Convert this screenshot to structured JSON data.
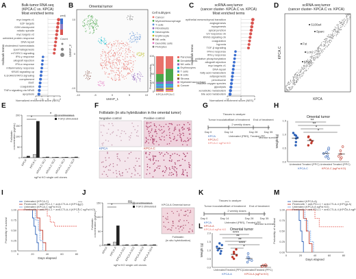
{
  "panels": {
    "A": {
      "letter": "A",
      "title": [
        "Bulk-tumor RNA seq",
        "(KPCA.C vs. KPCA)",
        "Most enriched terms"
      ],
      "ylabel": "Hallmark terms",
      "xlabel": "Normalized enrichment score (NES)",
      "legend_title": "padj",
      "size_title": "Count",
      "terms_up": [
        "myc targets v1",
        "E2F targets",
        "G2M checkpoint",
        "mitotic spindle",
        "myc targets v2",
        "unfolded protein response",
        "DNA repair",
        "cholesterol homeostasis",
        "spermatogenesis",
        "mTORC1 signaling"
      ],
      "terms_down": [
        "IFN-γ response",
        "allograft rejection",
        "IFN-α response",
        "inflammatory response",
        "KRAS signaling up",
        "IL6/JAK/STAT3 signaling",
        "complement",
        "EMT",
        "coagulation",
        "TNFα signaling via NFκB",
        "apoptosis"
      ],
      "ticks": [
        "−2",
        "−1",
        "0",
        "1",
        "2"
      ]
    },
    "B": {
      "letter": "B",
      "title": "Omental tumor",
      "xlabel": "UMAP_1",
      "ylabel": "UMAP_2",
      "legend_title": "Cell subtypes",
      "subtypes": [
        "Cancer",
        "Myeloid/macrophage",
        "T cells",
        "Fibroblasts",
        "Neutrophils",
        "Erythrocyte",
        "NK cells",
        "Dendritic cells",
        "Pericytes"
      ],
      "subtype_colors": [
        "#e8726b",
        "#4aa64a",
        "#5b8fd6",
        "#9467bd",
        "#17becf",
        "#bcbd22",
        "#8c564b",
        "#e377c2",
        "#7f7f7f"
      ],
      "bar_ylabel": "Percent composition",
      "bar_cats": [
        "KPCA",
        "KPCA.C"
      ],
      "bar_legend": [
        "Pancreas",
        "Dendritic cells",
        "NK cells",
        "Erythrocytes",
        "T cells",
        "B cells",
        "Stroma",
        "Myeloid/macrophage",
        "Cancer"
      ],
      "bar_ticks": [
        "0",
        "25",
        "50",
        "75",
        "100"
      ],
      "umap_ticks_x": [
        "-10",
        "-5",
        "0",
        "5",
        "10"
      ],
      "umap_ticks_y": [
        "-10",
        "0",
        "10"
      ]
    },
    "C": {
      "letter": "C",
      "title": [
        "scRNA-seq tumor",
        "(cancer cluster- KPCA.C vs. KPCA)",
        "Most enriched terms"
      ],
      "ylabel": "Hallmark terms",
      "xlabel": "Normalized enrichment score (NES)",
      "terms_up": [
        "epithelial mesenchymal transition",
        "angiogenesis",
        "myogenesis",
        "apical junction",
        "UV response dn",
        "KRAS signaling dn",
        "coagulation",
        "hypoxia",
        "TGF-β signaling"
      ],
      "terms_down": [
        "IFN-α response",
        "IFN-γ response",
        "oxidative phosphorylation",
        "allograft rejection",
        "myc targets v1",
        "DNA repair",
        "fatty acid metabolism",
        "adipogenesis",
        "peroxisome",
        "reactive oxygen species",
        "glycolysis",
        "xenobiotic metabolism",
        "bile acid metabolism"
      ],
      "ticks": [
        "−2",
        "0",
        "2"
      ]
    },
    "D": {
      "letter": "D",
      "title": [
        "scRNA-seq tumor",
        "(cancer cluster- KPCA.C vs. KPCA)"
      ],
      "xlabel": "KPCA",
      "ylabel": "KPCA.C",
      "labels": [
        "S100a4",
        "Sparc",
        "Fst",
        "Lcn2",
        "Krt20"
      ]
    },
    "E": {
      "letter": "E",
      "ylabel": [
        "Follistatin",
        "concentration (pg/mL)"
      ],
      "xlabel": "sgFst KO single cell clones",
      "legend": [
        "Unstimulated",
        "TGFβ stimulated"
      ],
      "categories": [
        "KPCA",
        "KPCA.C",
        "KPCA.C SC1",
        "KPCA.C SC2",
        "KPCA.C SC3",
        "KPCA.C SC4"
      ],
      "unstim": [
        3,
        15,
        2,
        2,
        2,
        2
      ],
      "stim": [
        8,
        172,
        4,
        3,
        3,
        4
      ],
      "ylim": [
        0,
        200
      ],
      "yticks": [
        0,
        50,
        100,
        150,
        200
      ],
      "sig": [
        "*",
        "*"
      ]
    },
    "F": {
      "letter": "F",
      "title": "Follistatin (in situ hybridization in the omental tumor)",
      "labels": [
        "Negative control",
        "Positive control",
        "KPCA",
        "KPCA.C"
      ]
    },
    "G": {
      "letter": "G",
      "labels": [
        "Tumor inoculation",
        "Start of treatment",
        "Tissues to analyze: Omental tumor weight, Malignant ascites",
        "End of treatment",
        "Day 0",
        "Day 14",
        "Day 28",
        "2 weekly doses",
        "Day 35"
      ],
      "groups": [
        "KPCA",
        "KPCA.C",
        "KPCA.C sgFst KO"
      ],
      "doses": "Untreated (PBS), Treated (PPC): PD-1 + anti-CTLA-4 + anti-PD-L1",
      "monitor": "Monitor survival"
    },
    "H": {
      "letter": "H",
      "title": "Omental tumor",
      "ylabel": "Weight (g)",
      "ylim": [
        0,
        1.5
      ],
      "yticks": [
        "0.0",
        "0.5",
        "1.0",
        "1.5"
      ],
      "groups": [
        "Untreated",
        "Treated (PPC)",
        "Untreated",
        "Treated (PPC)"
      ],
      "group_colors": [
        "#2e62b8",
        "#c0392b",
        "#2e62b8",
        "#c0392b"
      ],
      "sub": [
        "KPCA.C",
        "KPCA.C (sgFst KO)"
      ],
      "sig": [
        "**",
        "**",
        "*",
        "*"
      ],
      "points": [
        [
          0.95,
          0.85,
          1.05,
          0.72,
          0.88,
          0.6,
          0.98
        ],
        [
          0.9,
          0.75,
          0.8,
          0.68,
          0.92,
          0.6
        ],
        [
          0.45,
          0.3,
          0.22,
          0.18,
          0.5,
          0.12,
          0.35
        ],
        [
          0.4,
          0.2,
          0.55,
          0.15,
          0.28,
          0.1
        ]
      ]
    },
    "I": {
      "letter": "I",
      "ylabel": "Probability of survival",
      "xlabel": "Days elapsed",
      "xticks": [
        0,
        20,
        40,
        60,
        80
      ],
      "yticks": [
        "0.00",
        "0.25",
        "0.50",
        "0.75",
        "1.00"
      ],
      "legend": [
        "Untreated (KPCA.C)",
        "Pembrolib + anti-PD-L1 + anti-CTLA-4 (KPCA.C)",
        "Untreated (KPCA.C sgFst KO)",
        "Pembrolib + anti-PD-L1 + anti-CTLA-4 (KPCA.C sgFst KO)"
      ],
      "colors": [
        "#2e62b8",
        "#c0392b",
        "#7aa3e0",
        "#e8726b"
      ],
      "sig": [
        "****",
        "***",
        "*",
        "*"
      ],
      "curves": [
        {
          "x": [
            0,
            18,
            20,
            22,
            24,
            26,
            28
          ],
          "y": [
            1,
            1,
            0.8,
            0.6,
            0.4,
            0.2,
            0
          ]
        },
        {
          "x": [
            0,
            24,
            26,
            30,
            34,
            38
          ],
          "y": [
            1,
            1,
            0.8,
            0.5,
            0.2,
            0
          ]
        },
        {
          "x": [
            0,
            20,
            24,
            28,
            30,
            34
          ],
          "y": [
            1,
            1,
            0.75,
            0.5,
            0.25,
            0
          ]
        },
        {
          "x": [
            0,
            34,
            40,
            44,
            50,
            80
          ],
          "y": [
            1,
            1,
            0.85,
            0.7,
            0.6,
            0.6
          ]
        }
      ]
    },
    "J": {
      "letter": "J",
      "ylabel": [
        "Follistatin",
        "concentration (pg/mL)"
      ],
      "xlabel": "sgFst KO single cell clones",
      "legend": [
        "Unstimulated",
        "TGF3 stimulated"
      ],
      "categories": [
        "KPCA",
        "KPCA.A",
        "KPCA.A SC1",
        "KPCA.A SC2",
        "KPCA.A SC3",
        "KPCA.A SC4"
      ],
      "unstim": [
        3,
        12,
        2,
        2,
        2,
        2
      ],
      "stim": [
        6,
        70,
        3,
        3,
        3,
        3
      ],
      "ylim": [
        0,
        150
      ],
      "yticks": [
        0,
        50,
        100,
        150
      ],
      "sig": [
        "*",
        "ns"
      ],
      "inset_title": "KPCA.A Omental tumor",
      "inset_caption": [
        "Follistatin",
        "(in situ hybridization)"
      ]
    },
    "K": {
      "letter": "K",
      "labels": [
        "Tumor inoculation",
        "Start of treatment",
        "Tissues to analyze: Omental tumor weight, Malignant ascites",
        "End of treatment",
        "Day 0",
        "Day 14",
        "Day 28",
        "2 weekly doses",
        "Day 35"
      ],
      "groups": [
        "KPCA",
        "KPCA.A",
        "KPCA.A sgFst KO"
      ],
      "doses": "Untreated (PBS), Treated (PPC): PD-1 + anti-CTLA-4 + anti-PD-L1",
      "monitor": "Monitor survival"
    },
    "L": {
      "letter": "L",
      "title": "Omental tumor",
      "ylabel": "Weight (g)",
      "ylim": [
        0,
        2.0
      ],
      "yticks": [
        "0.0",
        "0.5",
        "1.0",
        "1.5",
        "2.0"
      ],
      "groups": [
        "Untreated",
        "Treated (PPC)",
        "Untreated",
        "Treated (PPC)"
      ],
      "group_colors": [
        "#2e62b8",
        "#c0392b",
        "#2e62b8",
        "#c0392b"
      ],
      "sub": [
        "KPCA.A",
        "KPCA.A (sgFst KO)"
      ],
      "sig": [
        "****",
        "**",
        "**",
        "****",
        "*"
      ],
      "points": [
        [
          1.3,
          1.1,
          0.95,
          1.2,
          0.8,
          1.4,
          1.0
        ],
        [
          0.9,
          0.7,
          1.05,
          0.6,
          0.8,
          0.5
        ],
        [
          0.6,
          0.45,
          0.8,
          0.3,
          0.55,
          0.4
        ],
        [
          0.12,
          0.08,
          0.15,
          0.05,
          0.1,
          0.06
        ]
      ]
    },
    "M": {
      "letter": "M",
      "ylabel": "Probability of survival",
      "xlabel": "Days elapsed",
      "xticks": [
        0,
        20,
        40,
        60,
        80
      ],
      "yticks": [
        "0.00",
        "0.25",
        "0.50",
        "0.75",
        "1.00"
      ],
      "legend": [
        "Untreated (KPCA.A)",
        "Pembrolib + anti-PD-L1 + anti-CTLA-4 (KPCA.A)",
        "Untreated (KPCA.A sgFst KO)",
        "Pembrolib + anti-PD-L1 + anti-CTLA-4 (KPCA.A sgFst KO)"
      ],
      "colors": [
        "#2e62b8",
        "#c0392b",
        "#7aa3e0",
        "#e8726b"
      ],
      "sig": [
        "****",
        "**",
        "*"
      ],
      "curves": [
        {
          "x": [
            0,
            16,
            18,
            20,
            22,
            24
          ],
          "y": [
            1,
            1,
            0.75,
            0.5,
            0.25,
            0
          ]
        },
        {
          "x": [
            0,
            20,
            24,
            28,
            32,
            36
          ],
          "y": [
            1,
            1,
            0.8,
            0.5,
            0.2,
            0
          ]
        },
        {
          "x": [
            0,
            22,
            26,
            30,
            34,
            38
          ],
          "y": [
            1,
            1,
            0.75,
            0.5,
            0.25,
            0
          ]
        },
        {
          "x": [
            0,
            36,
            40,
            46,
            80
          ],
          "y": [
            1,
            1,
            0.8,
            0.6,
            0.6
          ]
        }
      ]
    }
  }
}
